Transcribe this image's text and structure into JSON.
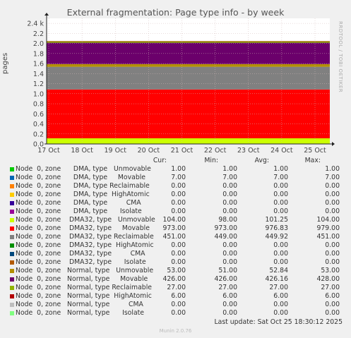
{
  "chart_data": {
    "type": "area",
    "title": "External fragmentation: Page type info - by week",
    "ylabel": "pages",
    "side_label": "RRDTOOL / TOBI OETIKER",
    "x_ticks": [
      "17 Oct",
      "18 Oct",
      "19 Oct",
      "20 Oct",
      "21 Oct",
      "22 Oct",
      "23 Oct",
      "24 Oct",
      "25 Oct"
    ],
    "y_ticks": [
      "0.0",
      "0.2",
      "0.4",
      "0.6",
      "0.8",
      "1.0",
      "1.2",
      "1.4",
      "1.6",
      "1.8",
      "2.0",
      "2.2",
      "2.4 k"
    ],
    "ylim": [
      0,
      2500
    ],
    "stacked": true,
    "columns": [
      "Cur:",
      "Min:",
      "Avg:",
      "Max:"
    ],
    "series": [
      {
        "name": "Node  0, zone      DMA, type   Unmovable",
        "color": "#00cc00",
        "cur": "1.00",
        "min": "1.00",
        "avg": "1.00",
        "max": "1.00",
        "value": 1
      },
      {
        "name": "Node  0, zone      DMA, type     Movable",
        "color": "#0066b3",
        "cur": "7.00",
        "min": "7.00",
        "avg": "7.00",
        "max": "7.00",
        "value": 7
      },
      {
        "name": "Node  0, zone      DMA, type Reclaimable",
        "color": "#ff8000",
        "cur": "0.00",
        "min": "0.00",
        "avg": "0.00",
        "max": "0.00",
        "value": 0
      },
      {
        "name": "Node  0, zone      DMA, type  HighAtomic",
        "color": "#ffcc00",
        "cur": "0.00",
        "min": "0.00",
        "avg": "0.00",
        "max": "0.00",
        "value": 0
      },
      {
        "name": "Node  0, zone      DMA, type         CMA",
        "color": "#330099",
        "cur": "0.00",
        "min": "0.00",
        "avg": "0.00",
        "max": "0.00",
        "value": 0
      },
      {
        "name": "Node  0, zone      DMA, type      Isolate",
        "color": "#990099",
        "cur": "0.00",
        "min": "0.00",
        "avg": "0.00",
        "max": "0.00",
        "value": 0
      },
      {
        "name": "Node  0, zone    DMA32, type   Unmovable",
        "color": "#ccff00",
        "cur": "104.00",
        "min": "98.00",
        "avg": "101.25",
        "max": "104.00",
        "value": 104
      },
      {
        "name": "Node  0, zone    DMA32, type     Movable",
        "color": "#ff0000",
        "cur": "973.00",
        "min": "973.00",
        "avg": "976.83",
        "max": "979.00",
        "value": 973
      },
      {
        "name": "Node  0, zone    DMA32, type Reclaimable",
        "color": "#808080",
        "cur": "451.00",
        "min": "449.00",
        "avg": "449.92",
        "max": "451.00",
        "value": 451
      },
      {
        "name": "Node  0, zone    DMA32, type  HighAtomic",
        "color": "#008f00",
        "cur": "0.00",
        "min": "0.00",
        "avg": "0.00",
        "max": "0.00",
        "value": 0
      },
      {
        "name": "Node  0, zone    DMA32, type         CMA",
        "color": "#00487d",
        "cur": "0.00",
        "min": "0.00",
        "avg": "0.00",
        "max": "0.00",
        "value": 0
      },
      {
        "name": "Node  0, zone    DMA32, type      Isolate",
        "color": "#b35a00",
        "cur": "0.00",
        "min": "0.00",
        "avg": "0.00",
        "max": "0.00",
        "value": 0
      },
      {
        "name": "Node  0, zone   Normal, type   Unmovable",
        "color": "#b38f00",
        "cur": "53.00",
        "min": "51.00",
        "avg": "52.84",
        "max": "53.00",
        "value": 53
      },
      {
        "name": "Node  0, zone   Normal, type     Movable",
        "color": "#6b006b",
        "cur": "426.00",
        "min": "426.00",
        "avg": "426.16",
        "max": "428.00",
        "value": 426
      },
      {
        "name": "Node  0, zone   Normal, type Reclaimable",
        "color": "#8fb300",
        "cur": "27.00",
        "min": "27.00",
        "avg": "27.00",
        "max": "27.00",
        "value": 27
      },
      {
        "name": "Node  0, zone   Normal, type  HighAtomic",
        "color": "#b30000",
        "cur": "6.00",
        "min": "6.00",
        "avg": "6.00",
        "max": "6.00",
        "value": 6
      },
      {
        "name": "Node  0, zone   Normal, type         CMA",
        "color": "#bebebe",
        "cur": "0.00",
        "min": "0.00",
        "avg": "0.00",
        "max": "0.00",
        "value": 0
      },
      {
        "name": "Node  0, zone   Normal, type      Isolate",
        "color": "#80ff80",
        "cur": "0.00",
        "min": "0.00",
        "avg": "0.00",
        "max": "0.00",
        "value": 0
      }
    ],
    "last_update": "Last update: Sat Oct 25 18:30:12 2025",
    "footer": "Munin 2.0.76"
  }
}
